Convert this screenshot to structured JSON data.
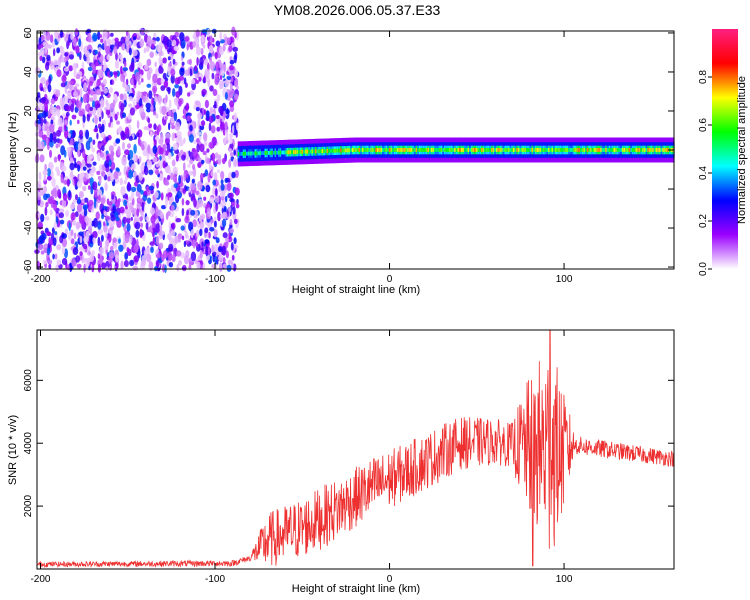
{
  "figure": {
    "title": "YM08.2026.006.05.37.E33"
  },
  "chart_data": [
    {
      "type": "heatmap",
      "xlabel": "Height of straight line (km)",
      "ylabel": "Frequency (Hz)",
      "xlim": [
        -202,
        163
      ],
      "ylim": [
        -61,
        61
      ],
      "xticks": [
        -200,
        -100,
        0,
        100
      ],
      "yticks": [
        -60,
        -40,
        -20,
        0,
        20,
        40,
        60
      ],
      "regions": [
        {
          "x_range": [
            -202,
            -87
          ],
          "y_range": [
            -61,
            61
          ],
          "kind": "broadband noise",
          "amplitude": 0.15
        },
        {
          "x_range": [
            -87,
            163
          ],
          "center_hz": 0,
          "half_width_hz": 4,
          "kind": "narrow band",
          "amplitude": 0.8
        }
      ],
      "colorbar": {
        "label": "Normalized spectral amplitude",
        "range": [
          0,
          1
        ],
        "ticks": [
          0.0,
          0.2,
          0.4,
          0.6,
          0.8
        ],
        "tick_labels": [
          "0.0",
          "0.2",
          "0.4",
          "0.6",
          "0.8"
        ],
        "colors": [
          "#ffffff",
          "#9b00ff",
          "#0000ff",
          "#00ffff",
          "#00ff00",
          "#ffff00",
          "#ff0000",
          "#ff1f80"
        ]
      }
    },
    {
      "type": "line",
      "xlabel": "Height of straight line (km)",
      "ylabel": "SNR (10 * v/v)",
      "xlim": [
        -202,
        163
      ],
      "ylim": [
        0,
        7600
      ],
      "xticks": [
        -200,
        -100,
        0,
        100
      ],
      "yticks": [
        2000,
        4000,
        6000
      ],
      "color": "#ee3030",
      "envelope": [
        {
          "x": -202,
          "y": 150
        },
        {
          "x": -90,
          "y": 180
        },
        {
          "x": -80,
          "y": 350
        },
        {
          "x": -70,
          "y": 900
        },
        {
          "x": -50,
          "y": 1300
        },
        {
          "x": -30,
          "y": 1900
        },
        {
          "x": -10,
          "y": 2600
        },
        {
          "x": 10,
          "y": 3100
        },
        {
          "x": 30,
          "y": 3700
        },
        {
          "x": 40,
          "y": 4000
        },
        {
          "x": 60,
          "y": 4050
        },
        {
          "x": 75,
          "y": 3900
        },
        {
          "x": 90,
          "y": 3800
        },
        {
          "x": 100,
          "y": 3700
        },
        {
          "x": 105,
          "y": 3950
        },
        {
          "x": 130,
          "y": 3750
        },
        {
          "x": 163,
          "y": 3500
        }
      ],
      "noise": [
        {
          "x": -202,
          "amp": 80
        },
        {
          "x": -80,
          "amp": 100
        },
        {
          "x": -70,
          "amp": 900
        },
        {
          "x": -40,
          "amp": 1000
        },
        {
          "x": 30,
          "amp": 900
        },
        {
          "x": 70,
          "amp": 700
        },
        {
          "x": 78,
          "amp": 2000
        },
        {
          "x": 92,
          "amp": 3600
        },
        {
          "x": 103,
          "amp": 1200
        },
        {
          "x": 106,
          "amp": 300
        },
        {
          "x": 163,
          "amp": 250
        }
      ],
      "peak": {
        "x": 92,
        "y": 7600
      },
      "min": {
        "x": 82,
        "y": 100
      }
    }
  ]
}
